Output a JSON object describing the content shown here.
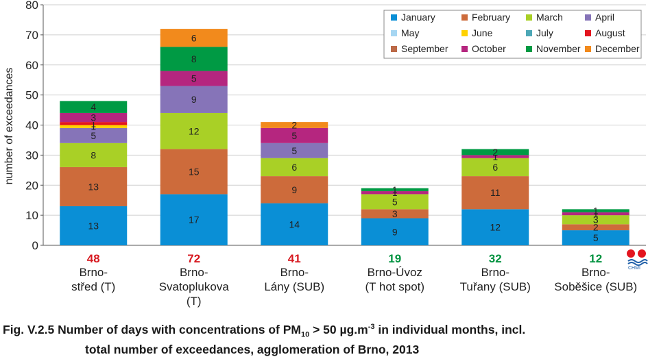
{
  "chart_data": {
    "type": "bar",
    "stacked": true,
    "ylabel": "number of exceedances",
    "ylim": [
      0,
      80
    ],
    "yticks": [
      "0",
      "10",
      "20",
      "30",
      "40",
      "50",
      "60",
      "70",
      "80"
    ],
    "grid": true,
    "legend_position": "top-right",
    "categories": [
      {
        "total": "48",
        "total_color": "#d71920",
        "lines": [
          "Brno-",
          "střed (T)"
        ]
      },
      {
        "total": "72",
        "total_color": "#d71920",
        "lines": [
          "Brno-",
          "Svatoplukova",
          "(T)"
        ]
      },
      {
        "total": "41",
        "total_color": "#d71920",
        "lines": [
          "Brno-",
          "Lány (SUB)"
        ]
      },
      {
        "total": "19",
        "total_color": "#00923f",
        "lines": [
          "Brno-Úvoz",
          "(T hot spot)"
        ]
      },
      {
        "total": "32",
        "total_color": "#00923f",
        "lines": [
          "Brno-",
          "Tuřany (SUB)"
        ]
      },
      {
        "total": "12",
        "total_color": "#00923f",
        "lines": [
          "Brno-",
          "Soběšice (SUB)"
        ]
      }
    ],
    "series": [
      {
        "name": "January",
        "color": "#0a8fd6",
        "values": [
          13,
          17,
          14,
          9,
          12,
          5
        ]
      },
      {
        "name": "February",
        "color": "#cd6b3b",
        "values": [
          13,
          15,
          9,
          3,
          11,
          2
        ]
      },
      {
        "name": "March",
        "color": "#a9d026",
        "values": [
          8,
          12,
          6,
          5,
          6,
          3
        ]
      },
      {
        "name": "April",
        "color": "#8674b8",
        "values": [
          5,
          9,
          5,
          0,
          0,
          0
        ]
      },
      {
        "name": "May",
        "color": "#a6d6f2",
        "values": [
          0,
          0,
          0,
          0,
          0,
          0
        ]
      },
      {
        "name": "June",
        "color": "#ffd200",
        "values": [
          1,
          0,
          0,
          0,
          0,
          0
        ]
      },
      {
        "name": "July",
        "color": "#4ca7b6",
        "values": [
          0,
          0,
          0,
          0,
          0,
          0
        ]
      },
      {
        "name": "August",
        "color": "#e3151f",
        "values": [
          1,
          0,
          0,
          0,
          0,
          0
        ]
      },
      {
        "name": "September",
        "color": "#bc6a48",
        "values": [
          0,
          0,
          0,
          0,
          0,
          0
        ]
      },
      {
        "name": "October",
        "color": "#b5267f",
        "values": [
          3,
          5,
          5,
          1,
          1,
          1
        ]
      },
      {
        "name": "November",
        "color": "#009a44",
        "values": [
          4,
          8,
          0,
          1,
          2,
          1
        ]
      },
      {
        "name": "December",
        "color": "#f28a1c",
        "values": [
          0,
          6,
          2,
          0,
          0,
          0
        ]
      }
    ]
  },
  "caption": {
    "prefix": "Fig. V.2.5  Number of days with concentrations of PM",
    "sub": "10",
    "mid": " > 50 µg.m",
    "sup": "-3",
    "suffix": " in individual months, incl.",
    "line2": "total number of exceedances, agglomeration of Brno, 2013"
  },
  "logo": {
    "text": "CHMI",
    "icon": "chmi-logo-icon"
  }
}
